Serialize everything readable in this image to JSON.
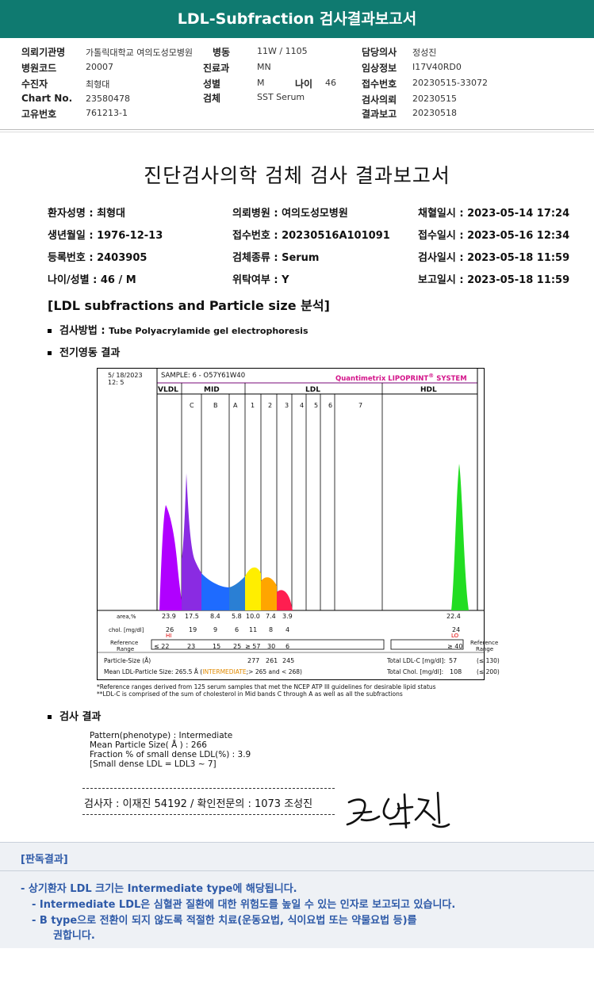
{
  "header": {
    "title": "LDL-Subfraction 검사결과보고서"
  },
  "info": {
    "col1": [
      {
        "label": "의뢰기관명",
        "value": "가톨릭대학교 여의도성모병원"
      },
      {
        "label": "병원코드",
        "value": "20007"
      },
      {
        "label": "수진자",
        "value": "최형대"
      },
      {
        "label": "Chart No.",
        "value": "23580478"
      },
      {
        "label": "고유번호",
        "value": "761213-1"
      }
    ],
    "col2": [
      {
        "label": "병동",
        "value": "11W / 1105"
      },
      {
        "label": "진료과",
        "value": "MN"
      },
      {
        "label": "성별",
        "value": "M"
      },
      {
        "label": "검체",
        "value": "SST Serum"
      }
    ],
    "age": {
      "label": "나이",
      "value": "46"
    },
    "col3": [
      {
        "label": "담당의사",
        "value": "정성진"
      },
      {
        "label": "임상정보",
        "value": "I17V40RD0"
      },
      {
        "label": "접수번호",
        "value": "20230515-33072"
      },
      {
        "label": "검사의뢰",
        "value": "20230515"
      },
      {
        "label": "결과보고",
        "value": "20230518"
      }
    ]
  },
  "report": {
    "title": "진단검사의학 검체 검사 결과보고서",
    "patient": [
      [
        "환자성명 : 최형대",
        "의뢰병원 : 여의도성모병원",
        "채혈일시 : 2023-05-14 17:24"
      ],
      [
        "생년월일 : 1976-12-13",
        "접수번호 : 20230516A101091",
        "접수일시 : 2023-05-16 12:34"
      ],
      [
        "등록번호 : 2403905",
        "검체종류 : Serum",
        "검사일시 : 2023-05-18 11:59"
      ],
      [
        "나이/성별 : 46 / M",
        "위탁여부 : Y",
        "보고일시 : 2023-05-18 11:59"
      ]
    ],
    "section_heading": "[LDL subfractions and Particle size 분석]",
    "method_label": "검사방법 :",
    "method_value": "Tube Polyacrylamide gel electrophoresis",
    "electro_label": "전기영동 결과",
    "results_label": "검사 결과",
    "results_lines": [
      "Pattern(phenotype) : Intermediate",
      "Mean Particle Size( Å ) : 266",
      "Fraction % of small dense LDL(%) : 3.9",
      "[Small dense LDL = LDL3 ~ 7]"
    ],
    "signer": "검사자 : 이재진  54192  /  확인전문의 : 1073  조성진",
    "notes": [
      "*Reference ranges derived from 125 serum samples that met the NCEP ATP III guidelines for desirable lipid status",
      "**LDL-C is comprised of the sum of cholesterol in Mid bands C through A as well as all the subfractions"
    ]
  },
  "chart_data": {
    "type": "area",
    "date_line1": "5/ 18/2023",
    "date_line2": "12:  5",
    "sample": "SAMPLE:   6 - O57Y61W40",
    "brand": "Quantimetrix LIPOPRINT",
    "brand_reg": "®",
    "brand_suffix": " SYSTEM",
    "regions": [
      "VLDL",
      "MID",
      "LDL",
      "HDL"
    ],
    "bands": [
      "C",
      "B",
      "A",
      "1",
      "2",
      "3",
      "4",
      "5",
      "6",
      "7"
    ],
    "rows": {
      "area_label": "area,%",
      "area": [
        "23.9",
        "17.5",
        "8.4",
        "5.8",
        "10.0",
        "7.4",
        "3.9"
      ],
      "area_hdl": "22.4",
      "chol_label": "chol. [mg/dl]",
      "chol": [
        "26",
        "19",
        "9",
        "6",
        "11",
        "8",
        "4"
      ],
      "chol_hdl": "24",
      "hi_flag": "HI",
      "lo_flag": "LO",
      "ref_label_1": "Reference",
      "ref_label_2": "Range",
      "ref": [
        "≤  22",
        "23",
        "15",
        "25",
        "≥  57",
        "30",
        "6"
      ],
      "ref_hdl": "≥  40",
      "ref_right_1": "Reference",
      "ref_right_2": "Range",
      "particle_label": "Particle-Size (Å)",
      "particle": [
        "277",
        "261",
        "245"
      ],
      "total_ldl_label": "Total LDL-C [mg/dl]:",
      "total_ldl": "57",
      "total_ldl_ref": "(≤ 130)",
      "mean_label": "Mean LDL-Particle Size:   265.5 Å  (",
      "mean_tag": "INTERMEDIATE",
      "mean_rest": ";> 265 and < 268)",
      "total_chol_label": "Total Chol. [mg/dl]:",
      "total_chol": "108",
      "total_chol_ref": "(≤ 200)"
    },
    "colors": {
      "VLDL": "#b000ff",
      "MID_C": "#8a2be2",
      "MID_B": "#1e6bff",
      "MID_A": "#2a7fd4",
      "LDL1": "#ffee00",
      "LDL2": "#ffa500",
      "LDL3": "#ff1e50",
      "HDL": "#22dd22"
    }
  },
  "interpretation": {
    "title": "[판독결과]",
    "lines": [
      "-  상기환자 LDL 크기는 Intermediate type에 해당됩니다.",
      "-  Intermediate LDL은 심혈관 질환에 대한 위험도를 높일 수 있는 인자로 보고되고 있습니다.",
      "-  B type으로 전환이 되지 않도록 적절한 치료(운동요법, 식이요법 또는 약물요법 등)를",
      "권합니다."
    ]
  }
}
